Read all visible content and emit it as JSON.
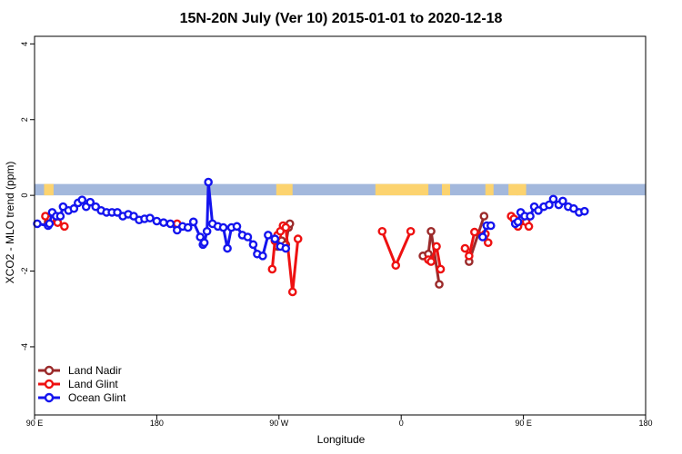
{
  "chart_data": {
    "type": "line",
    "title": "15N-20N July (Ver 10)   2015-01-01 to 2020-12-18",
    "xlabel": "Longitude",
    "ylabel": "XCO2 - MLO trend (ppm)",
    "xlim": [
      90,
      450
    ],
    "ylim": [
      -5.8,
      4.2
    ],
    "x_ticks": [
      {
        "value": 90,
        "label": "90 E"
      },
      {
        "value": 180,
        "label": "180"
      },
      {
        "value": 270,
        "label": "90 W"
      },
      {
        "value": 360,
        "label": "0"
      },
      {
        "value": 450,
        "label": "90 E"
      },
      {
        "value": 540,
        "label": "180"
      }
    ],
    "y_ticks": [
      {
        "value": 4,
        "label": "4"
      },
      {
        "value": 2,
        "label": "2"
      },
      {
        "value": 0,
        "label": "0"
      },
      {
        "value": -2,
        "label": "-2"
      },
      {
        "value": -4,
        "label": "-4"
      }
    ],
    "grid": false,
    "legend_position": "bottom-left",
    "land_mask_band": {
      "y_from": 0,
      "y_to": 0.3,
      "ocean_color": "#a3b8dc",
      "land_color": "#fcd36f",
      "land_segments": [
        [
          97,
          104
        ],
        [
          268,
          280
        ],
        [
          341,
          380
        ],
        [
          390,
          396
        ],
        [
          422,
          428
        ],
        [
          439,
          446
        ],
        [
          445,
          452
        ]
      ]
    },
    "series": [
      {
        "name": "Land Nadir",
        "color": "#9b2a2a",
        "points": [
          [
            100,
            -0.72
          ],
          [
            101,
            -0.62
          ],
          [
            102,
            -0.58
          ],
          [
            269,
            -1.35
          ],
          [
            272,
            -1.2
          ],
          [
            275,
            -1.3
          ],
          [
            277,
            -0.85
          ],
          [
            278,
            -0.75
          ],
          [
            376,
            -1.6
          ],
          [
            380,
            -1.55
          ],
          [
            382,
            -0.95
          ],
          [
            388,
            -2.35
          ],
          [
            410,
            -1.75
          ],
          [
            421,
            -0.55
          ]
        ]
      },
      {
        "name": "Land Glint",
        "color": "#ee1111",
        "points": [
          [
            98,
            -0.55
          ],
          [
            100,
            -0.78
          ],
          [
            102,
            -0.62
          ],
          [
            107,
            -0.72
          ],
          [
            112,
            -0.82
          ],
          [
            195,
            -0.75
          ],
          [
            265,
            -1.95
          ],
          [
            267,
            -1.2
          ],
          [
            269,
            -1.05
          ],
          [
            271,
            -0.95
          ],
          [
            273,
            -0.8
          ],
          [
            275,
            -0.85
          ],
          [
            280,
            -2.55
          ],
          [
            284,
            -1.15
          ],
          [
            346,
            -0.95
          ],
          [
            356,
            -1.85
          ],
          [
            367,
            -0.95
          ],
          [
            380,
            -1.7
          ],
          [
            382,
            -1.75
          ],
          [
            386,
            -1.35
          ],
          [
            389,
            -1.95
          ],
          [
            407,
            -1.4
          ],
          [
            410,
            -1.6
          ],
          [
            414,
            -0.97
          ],
          [
            422,
            -1.02
          ],
          [
            424,
            -1.25
          ],
          [
            441,
            -0.55
          ],
          [
            443,
            -0.62
          ],
          [
            446,
            -0.82
          ],
          [
            452,
            -0.7
          ],
          [
            454,
            -0.82
          ]
        ]
      },
      {
        "name": "Ocean Glint",
        "color": "#1414ee",
        "points": [
          [
            92,
            -0.75
          ],
          [
            100,
            -0.8
          ],
          [
            101,
            -0.75
          ],
          [
            103,
            -0.45
          ],
          [
            106,
            -0.55
          ],
          [
            109,
            -0.55
          ],
          [
            111,
            -0.3
          ],
          [
            115,
            -0.4
          ],
          [
            119,
            -0.35
          ],
          [
            122,
            -0.2
          ],
          [
            125,
            -0.12
          ],
          [
            128,
            -0.3
          ],
          [
            131,
            -0.18
          ],
          [
            135,
            -0.3
          ],
          [
            139,
            -0.4
          ],
          [
            143,
            -0.45
          ],
          [
            147,
            -0.45
          ],
          [
            151,
            -0.45
          ],
          [
            155,
            -0.55
          ],
          [
            159,
            -0.5
          ],
          [
            163,
            -0.55
          ],
          [
            167,
            -0.65
          ],
          [
            171,
            -0.62
          ],
          [
            175,
            -0.6
          ],
          [
            180,
            -0.68
          ],
          [
            185,
            -0.72
          ],
          [
            190,
            -0.75
          ],
          [
            195,
            -0.92
          ],
          [
            199,
            -0.82
          ],
          [
            203,
            -0.85
          ],
          [
            207,
            -0.7
          ],
          [
            212,
            -1.1
          ],
          [
            214,
            -1.3
          ],
          [
            215,
            -1.25
          ],
          [
            217,
            -0.95
          ],
          [
            218,
            0.35
          ],
          [
            221,
            -0.75
          ],
          [
            225,
            -0.82
          ],
          [
            229,
            -0.85
          ],
          [
            232,
            -1.4
          ],
          [
            235,
            -0.85
          ],
          [
            239,
            -0.82
          ],
          [
            243,
            -1.05
          ],
          [
            247,
            -1.1
          ],
          [
            251,
            -1.3
          ],
          [
            254,
            -1.55
          ],
          [
            258,
            -1.6
          ],
          [
            262,
            -1.05
          ],
          [
            267,
            -1.15
          ],
          [
            271,
            -1.35
          ],
          [
            275,
            -1.4
          ],
          [
            420,
            -1.1
          ],
          [
            423,
            -0.8
          ],
          [
            426,
            -0.8
          ],
          [
            444,
            -0.75
          ],
          [
            446,
            -0.7
          ],
          [
            448,
            -0.45
          ],
          [
            451,
            -0.55
          ],
          [
            455,
            -0.55
          ],
          [
            458,
            -0.3
          ],
          [
            461,
            -0.4
          ],
          [
            465,
            -0.3
          ],
          [
            469,
            -0.25
          ],
          [
            472,
            -0.1
          ],
          [
            476,
            -0.25
          ],
          [
            479,
            -0.15
          ],
          [
            483,
            -0.3
          ],
          [
            487,
            -0.35
          ],
          [
            491,
            -0.45
          ],
          [
            495,
            -0.42
          ]
        ]
      }
    ]
  }
}
